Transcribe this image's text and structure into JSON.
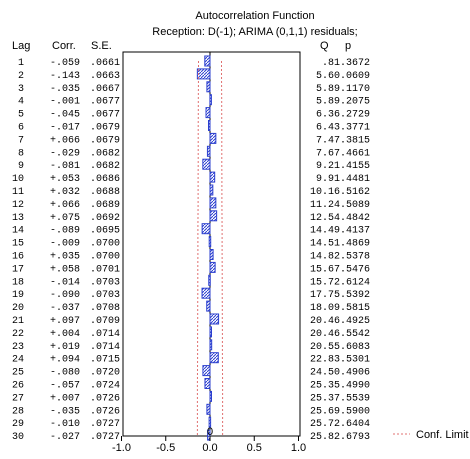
{
  "chart_data": {
    "type": "bar",
    "orientation": "horizontal",
    "title": "Autocorrelation Function",
    "subtitle": "Reception: D(-1); ARIMA (0,1,1) residuals;",
    "headers": {
      "lag": "Lag",
      "corr": "Corr.",
      "se": "S.E.",
      "q": "Q",
      "p": "p"
    },
    "xlim": [
      -1.0,
      1.0
    ],
    "x_ticks": [
      "-1.0",
      "-0.5",
      "0.0",
      "0.5",
      "1.0"
    ],
    "legend": {
      "label": "Conf. Limit",
      "position": "bottom-right"
    },
    "bar_color": "#2b3fcf",
    "conf_color": "#e07070",
    "zero_label": "0",
    "rows": [
      {
        "lag": "1",
        "corr_text": "-.059",
        "se": ".0661",
        "q": ".81",
        "p": ".3672",
        "corr": -0.059,
        "conf": 0.1296
      },
      {
        "lag": "2",
        "corr_text": "-.143",
        "se": ".0663",
        "q": "5.60",
        "p": ".0609",
        "corr": -0.143,
        "conf": 0.1299
      },
      {
        "lag": "3",
        "corr_text": "-.035",
        "se": ".0667",
        "q": "5.89",
        "p": ".1170",
        "corr": -0.035,
        "conf": 0.1307
      },
      {
        "lag": "4",
        "corr_text": "-.001",
        "se": ".0677",
        "q": "5.89",
        "p": ".2075",
        "corr": -0.001,
        "conf": 0.1327
      },
      {
        "lag": "5",
        "corr_text": "-.045",
        "se": ".0677",
        "q": "6.36",
        "p": ".2729",
        "corr": -0.045,
        "conf": 0.1327
      },
      {
        "lag": "6",
        "corr_text": "-.017",
        "se": ".0679",
        "q": "6.43",
        "p": ".3771",
        "corr": -0.017,
        "conf": 0.1331
      },
      {
        "lag": "7",
        "corr_text": "+.066",
        "se": ".0679",
        "q": "7.47",
        "p": ".3815",
        "corr": 0.066,
        "conf": 0.1331
      },
      {
        "lag": "8",
        "corr_text": "-.029",
        "se": ".0682",
        "q": "7.67",
        "p": ".4661",
        "corr": -0.029,
        "conf": 0.1337
      },
      {
        "lag": "9",
        "corr_text": "-.081",
        "se": ".0682",
        "q": "9.21",
        "p": ".4155",
        "corr": -0.081,
        "conf": 0.1337
      },
      {
        "lag": "10",
        "corr_text": "+.053",
        "se": ".0686",
        "q": "9.91",
        "p": ".4481",
        "corr": 0.053,
        "conf": 0.1345
      },
      {
        "lag": "11",
        "corr_text": "+.032",
        "se": ".0688",
        "q": "10.16",
        "p": ".5162",
        "corr": 0.032,
        "conf": 0.1348
      },
      {
        "lag": "12",
        "corr_text": "+.066",
        "se": ".0689",
        "q": "11.24",
        "p": ".5089",
        "corr": 0.066,
        "conf": 0.135
      },
      {
        "lag": "13",
        "corr_text": "+.075",
        "se": ".0692",
        "q": "12.54",
        "p": ".4842",
        "corr": 0.075,
        "conf": 0.1356
      },
      {
        "lag": "14",
        "corr_text": "-.089",
        "se": ".0695",
        "q": "14.49",
        "p": ".4137",
        "corr": -0.089,
        "conf": 0.1362
      },
      {
        "lag": "15",
        "corr_text": "-.009",
        "se": ".0700",
        "q": "14.51",
        "p": ".4869",
        "corr": -0.009,
        "conf": 0.1372
      },
      {
        "lag": "16",
        "corr_text": "+.035",
        "se": ".0700",
        "q": "14.82",
        "p": ".5378",
        "corr": 0.035,
        "conf": 0.1372
      },
      {
        "lag": "17",
        "corr_text": "+.058",
        "se": ".0701",
        "q": "15.67",
        "p": ".5476",
        "corr": 0.058,
        "conf": 0.1374
      },
      {
        "lag": "18",
        "corr_text": "-.014",
        "se": ".0703",
        "q": "15.72",
        "p": ".6124",
        "corr": -0.014,
        "conf": 0.1378
      },
      {
        "lag": "19",
        "corr_text": "-.090",
        "se": ".0703",
        "q": "17.75",
        "p": ".5392",
        "corr": -0.09,
        "conf": 0.1378
      },
      {
        "lag": "20",
        "corr_text": "-.037",
        "se": ".0708",
        "q": "18.09",
        "p": ".5815",
        "corr": -0.037,
        "conf": 0.1388
      },
      {
        "lag": "21",
        "corr_text": "+.097",
        "se": ".0709",
        "q": "20.46",
        "p": ".4925",
        "corr": 0.097,
        "conf": 0.139
      },
      {
        "lag": "22",
        "corr_text": "+.004",
        "se": ".0714",
        "q": "20.46",
        "p": ".5542",
        "corr": 0.004,
        "conf": 0.1399
      },
      {
        "lag": "23",
        "corr_text": "+.019",
        "se": ".0714",
        "q": "20.55",
        "p": ".6083",
        "corr": 0.019,
        "conf": 0.1399
      },
      {
        "lag": "24",
        "corr_text": "+.094",
        "se": ".0715",
        "q": "22.83",
        "p": ".5301",
        "corr": 0.094,
        "conf": 0.1401
      },
      {
        "lag": "25",
        "corr_text": "-.080",
        "se": ".0720",
        "q": "24.50",
        "p": ".4906",
        "corr": -0.08,
        "conf": 0.1411
      },
      {
        "lag": "26",
        "corr_text": "-.057",
        "se": ".0724",
        "q": "25.35",
        "p": ".4990",
        "corr": -0.057,
        "conf": 0.1419
      },
      {
        "lag": "27",
        "corr_text": "+.007",
        "se": ".0726",
        "q": "25.37",
        "p": ".5539",
        "corr": 0.007,
        "conf": 0.1423
      },
      {
        "lag": "28",
        "corr_text": "-.035",
        "se": ".0726",
        "q": "25.69",
        "p": ".5900",
        "corr": -0.035,
        "conf": 0.1423
      },
      {
        "lag": "29",
        "corr_text": "-.010",
        "se": ".0727",
        "q": "25.72",
        "p": ".6404",
        "corr": -0.01,
        "conf": 0.1425
      },
      {
        "lag": "30",
        "corr_text": "-.027",
        "se": ".0727",
        "q": "25.82",
        "p": ".6793",
        "corr": -0.027,
        "conf": 0.1425
      }
    ]
  }
}
